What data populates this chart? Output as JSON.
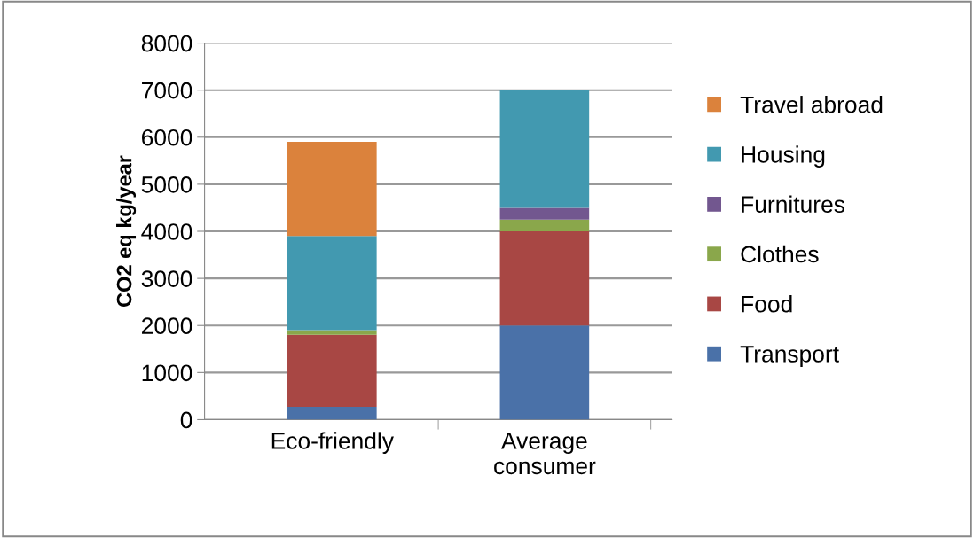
{
  "chart_data": {
    "type": "bar",
    "stacked": true,
    "ylabel": "CO2 eq kg/year",
    "categories": [
      "Eco-friendly",
      "Average\nconsumer"
    ],
    "series": [
      {
        "name": "Transport",
        "color": "#4a71a8",
        "values": [
          270,
          2000
        ]
      },
      {
        "name": "Food",
        "color": "#a84744",
        "values": [
          1530,
          2000
        ]
      },
      {
        "name": "Clothes",
        "color": "#8aa74b",
        "values": [
          100,
          250
        ]
      },
      {
        "name": "Furnitures",
        "color": "#72578f",
        "values": [
          0,
          250
        ]
      },
      {
        "name": "Housing",
        "color": "#4299b0",
        "values": [
          2000,
          2500
        ]
      },
      {
        "name": "Travel abroad",
        "color": "#db823c",
        "values": [
          2000,
          0
        ]
      }
    ],
    "ylim": [
      0,
      8000
    ],
    "yticks": [
      0,
      1000,
      2000,
      3000,
      4000,
      5000,
      6000,
      7000,
      8000
    ],
    "grid": "y",
    "legend": "right"
  }
}
